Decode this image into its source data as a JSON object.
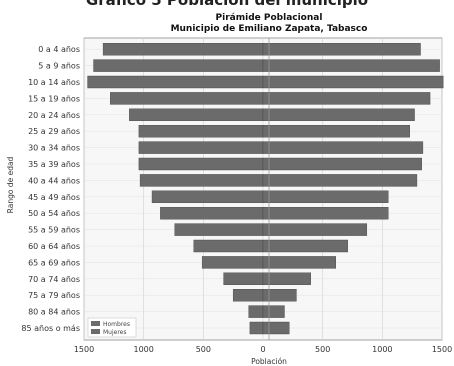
{
  "heading": "Gráfico 5 Población del municipio",
  "chart_data": {
    "type": "bar",
    "orientation": "horizontal",
    "title": "Pirámide Poblacional",
    "subtitle": "Municipio de Emiliano Zapata, Tabasco",
    "xlabel": "Población",
    "ylabel": "Rango de edad",
    "xlim": [
      -1500,
      1500
    ],
    "x_ticks": [
      -1500,
      -1000,
      -500,
      0,
      500,
      1000,
      1500
    ],
    "x_tick_labels": [
      "1500",
      "1000",
      "500",
      "0",
      "500",
      "1000",
      "1500"
    ],
    "grid": true,
    "legend_position": "bottom-left",
    "categories": [
      "0 a 4 años",
      "5 a 9 años",
      "10 a 14 años",
      "15 a 19 años",
      "20 a 24 años",
      "25 a 29 años",
      "30 a 34 años",
      "35 a 39 años",
      "40 a 44 años",
      "45 a 49 años",
      "50 a 54 años",
      "55 a 59 años",
      "60 a 64 años",
      "65 a 69 años",
      "70 a 74 años",
      "75 a 79 años",
      "80 a 84 años",
      "85 años o más"
    ],
    "series": [
      {
        "name": "Hombres",
        "color": "#6b6b6b",
        "values": [
          1340,
          1420,
          1470,
          1280,
          1120,
          1040,
          1040,
          1040,
          1030,
          930,
          860,
          740,
          580,
          510,
          330,
          250,
          120,
          110
        ]
      },
      {
        "name": "Mujeres",
        "color": "#6b6b6b",
        "values": [
          1320,
          1480,
          1510,
          1400,
          1270,
          1230,
          1340,
          1330,
          1290,
          1050,
          1050,
          870,
          710,
          610,
          400,
          280,
          180,
          220
        ]
      }
    ]
  }
}
